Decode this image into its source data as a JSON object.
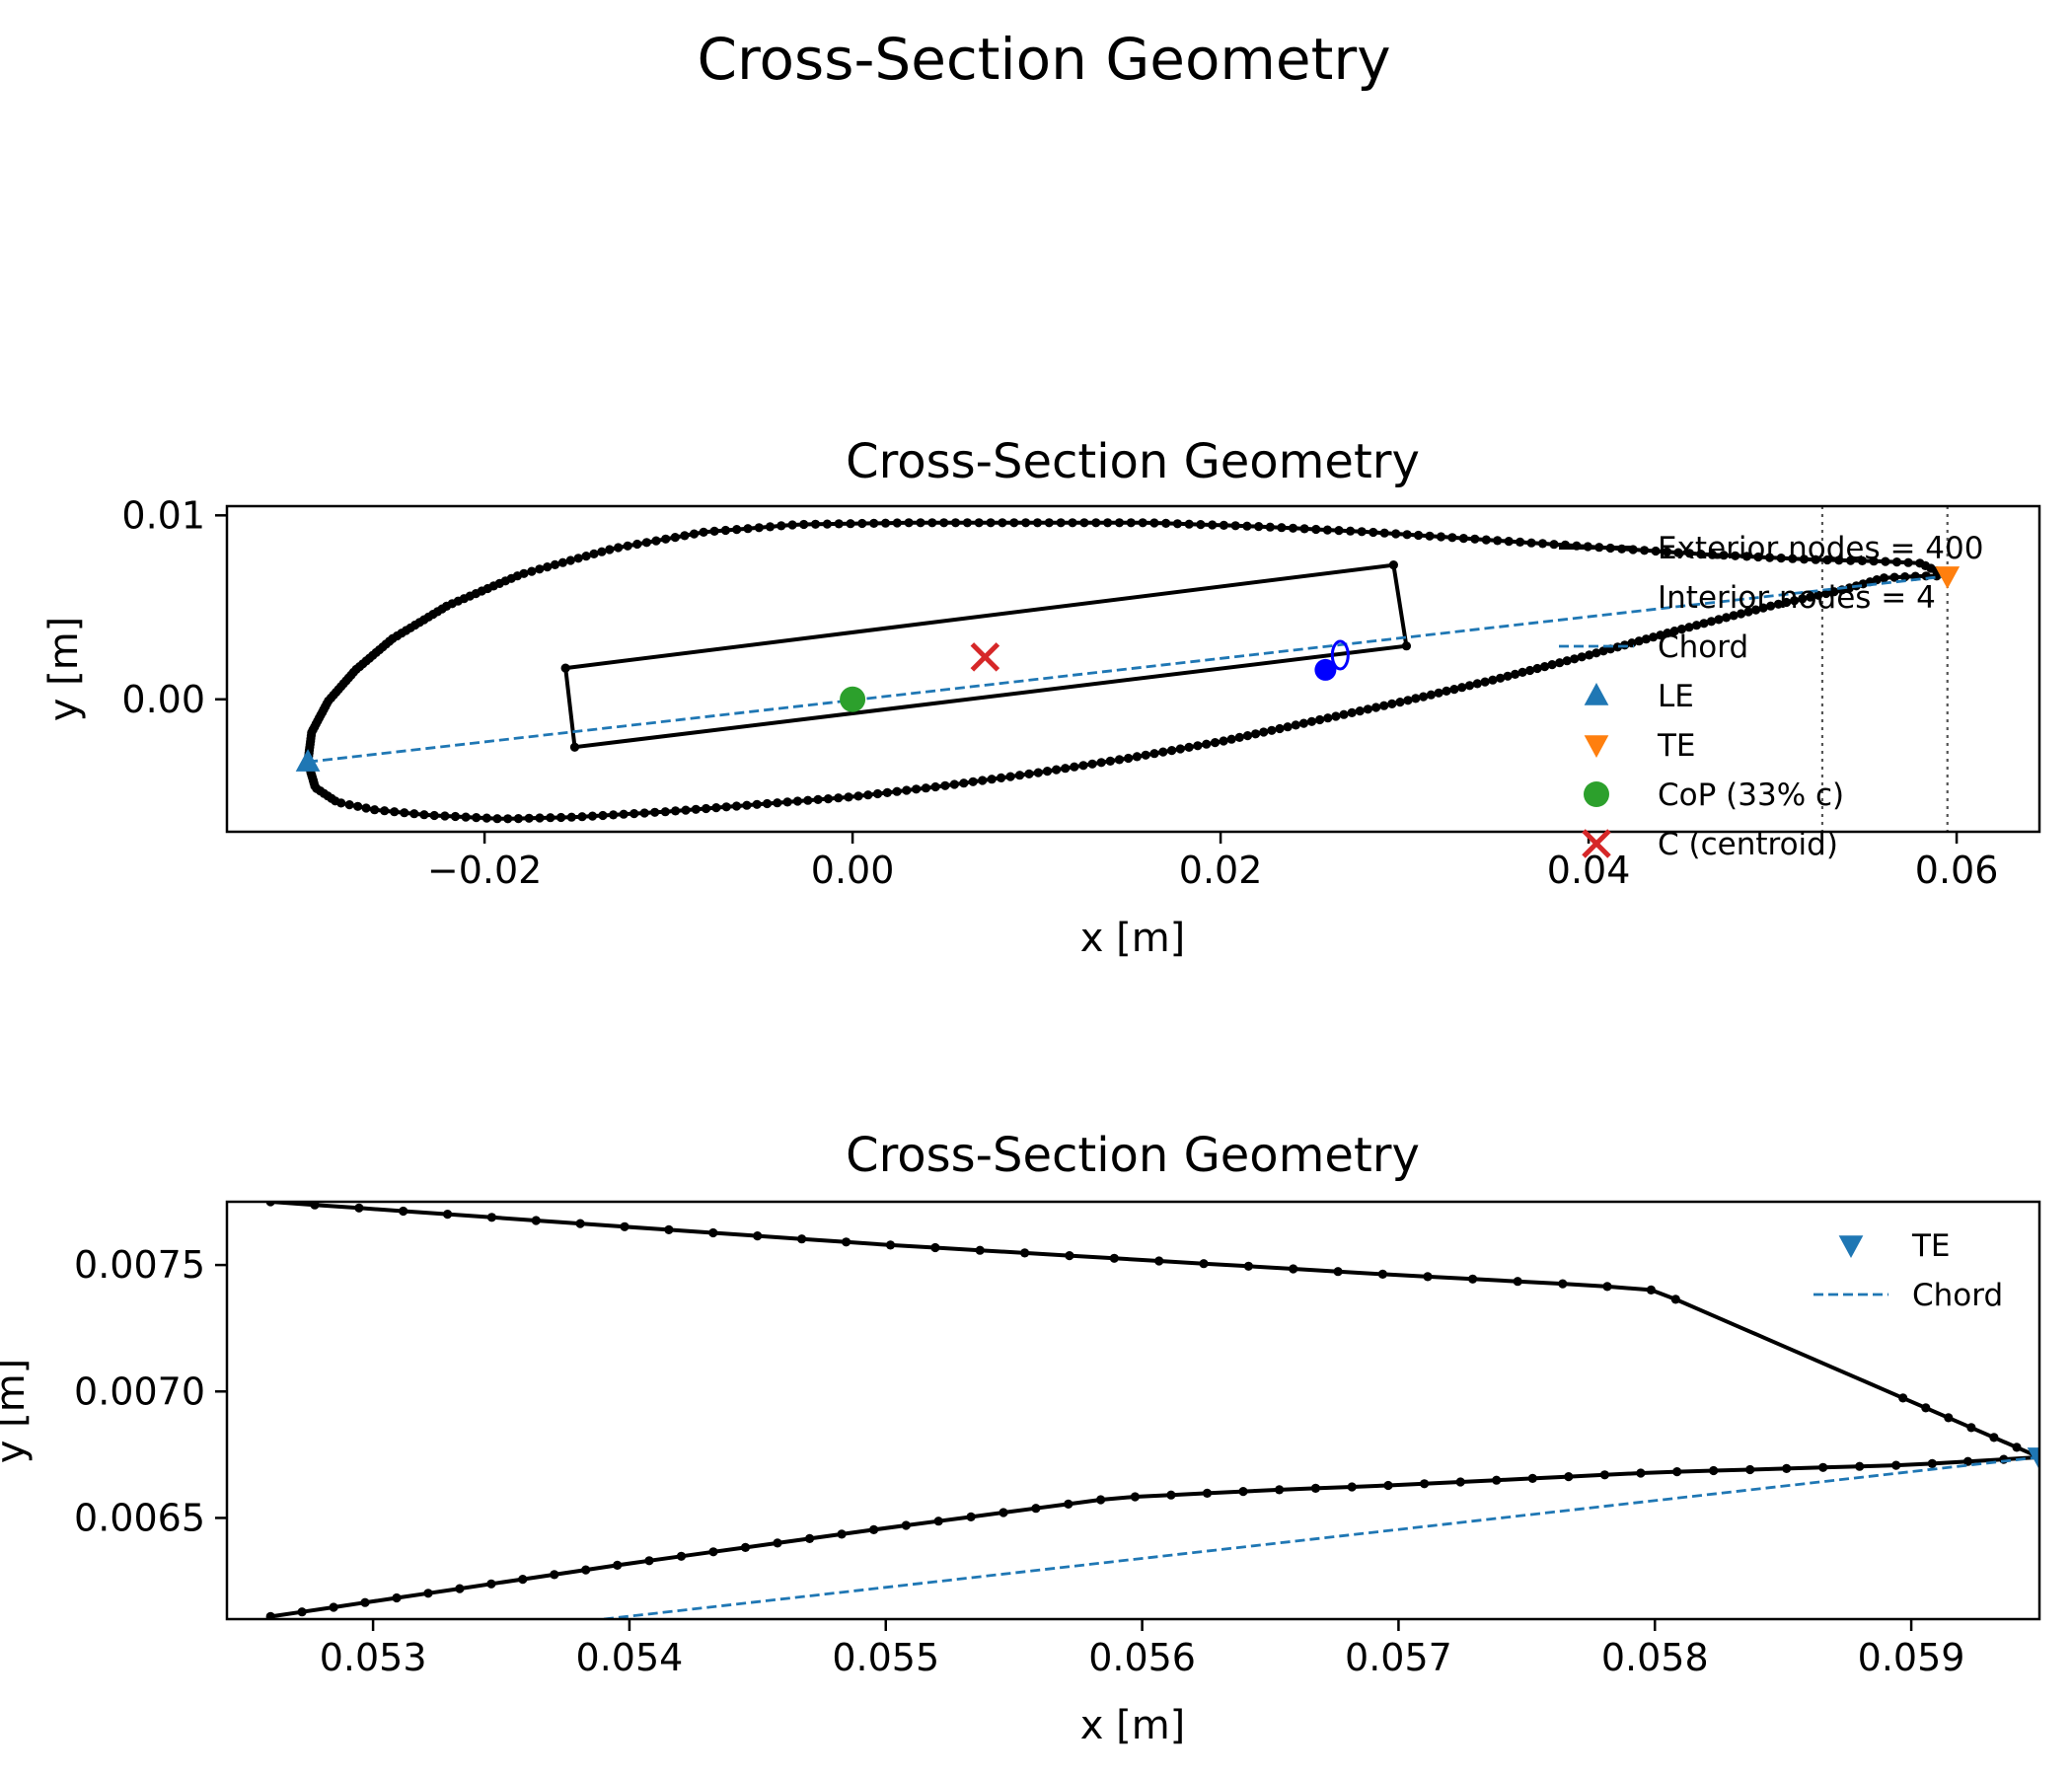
{
  "figure": {
    "suptitle": "Cross-Section Geometry"
  },
  "colors": {
    "exterior": "#000000",
    "chord": "#1f77b4",
    "le": "#1f77b4",
    "te": "#ff7f0e",
    "te_zoom": "#1f77b4",
    "cop": "#2ca02c",
    "centroid": "#d62728",
    "shear_center": "#0000ff",
    "guide": "#555555"
  },
  "chart_data": [
    {
      "type": "line",
      "title": "Cross-Section Geometry",
      "xlabel": "x [m]",
      "ylabel": "y [m]",
      "xlim": [
        -0.034,
        0.0645
      ],
      "ylim": [
        -0.0072,
        0.0105
      ],
      "xticks": [
        -0.02,
        0.0,
        0.02,
        0.04,
        0.06
      ],
      "xtick_labels": [
        "−0.02",
        "0.00",
        "0.02",
        "0.04",
        "0.06"
      ],
      "yticks": [
        0.0,
        0.01
      ],
      "ytick_labels": [
        "0.00",
        "0.01"
      ],
      "grid": false,
      "legend_position": "right",
      "legend": [
        {
          "label": "Exterior nodes = 400",
          "marker": "line"
        },
        {
          "label": "Interior nodes = 4",
          "marker": "none"
        },
        {
          "label": "Chord",
          "marker": "dash"
        },
        {
          "label": "LE",
          "marker": "triangle-up"
        },
        {
          "label": "TE",
          "marker": "triangle-down"
        },
        {
          "label": "CoP (33% c)",
          "marker": "circle"
        },
        {
          "label": "C (centroid)",
          "marker": "x"
        }
      ],
      "airfoil": {
        "le": [
          -0.0296,
          -0.0034
        ],
        "te": [
          0.0595,
          0.0067
        ],
        "upper": [
          [
            -0.0296,
            -0.0034
          ],
          [
            -0.0294,
            -0.0018
          ],
          [
            -0.0285,
            -0.0001
          ],
          [
            -0.027,
            0.0016
          ],
          [
            -0.025,
            0.0033
          ],
          [
            -0.022,
            0.0051
          ],
          [
            -0.018,
            0.0068
          ],
          [
            -0.013,
            0.0082
          ],
          [
            -0.008,
            0.0091
          ],
          [
            -0.003,
            0.0095
          ],
          [
            0.003,
            0.0096
          ],
          [
            0.01,
            0.0096
          ],
          [
            0.016,
            0.0096
          ],
          [
            0.022,
            0.0094
          ],
          [
            0.028,
            0.0091
          ],
          [
            0.034,
            0.0087
          ],
          [
            0.04,
            0.0083
          ],
          [
            0.046,
            0.0079
          ],
          [
            0.052,
            0.0076
          ],
          [
            0.056,
            0.0075
          ],
          [
            0.058,
            0.0074
          ],
          [
            0.0595,
            0.0067
          ]
        ],
        "lower": [
          [
            -0.0296,
            -0.0034
          ],
          [
            -0.0292,
            -0.0048
          ],
          [
            -0.028,
            -0.0056
          ],
          [
            -0.026,
            -0.006
          ],
          [
            -0.023,
            -0.0063
          ],
          [
            -0.019,
            -0.0065
          ],
          [
            -0.015,
            -0.0064
          ],
          [
            -0.01,
            -0.0061
          ],
          [
            -0.005,
            -0.0057
          ],
          [
            0.0,
            -0.0053
          ],
          [
            0.005,
            -0.0047
          ],
          [
            0.01,
            -0.004
          ],
          [
            0.015,
            -0.0032
          ],
          [
            0.02,
            -0.0023
          ],
          [
            0.025,
            -0.0012
          ],
          [
            0.03,
            -0.0001
          ],
          [
            0.035,
            0.0011
          ],
          [
            0.04,
            0.0024
          ],
          [
            0.045,
            0.0038
          ],
          [
            0.05,
            0.0051
          ],
          [
            0.054,
            0.006
          ],
          [
            0.056,
            0.0066
          ],
          [
            0.058,
            0.0067
          ],
          [
            0.0595,
            0.0067
          ]
        ]
      },
      "interior_box": [
        [
          -0.0156,
          0.0017
        ],
        [
          0.0294,
          0.0073
        ],
        [
          0.0301,
          0.0029
        ],
        [
          -0.0151,
          -0.0026
        ]
      ],
      "chord_line": [
        [
          -0.0296,
          -0.0034
        ],
        [
          0.0595,
          0.0067
        ]
      ],
      "guides_x": [
        0.0527,
        0.0595
      ],
      "cop": [
        0.0,
        0.0
      ],
      "centroid": [
        0.0072,
        0.0023
      ],
      "shear_center": [
        0.0257,
        0.0016
      ],
      "shear_center_ring": [
        0.0265,
        0.0024
      ]
    },
    {
      "type": "line",
      "title": "Cross-Section Geometry",
      "xlabel": "x [m]",
      "ylabel": "y [m]",
      "xlim": [
        0.05243,
        0.0595
      ],
      "ylim": [
        0.0061,
        0.00775
      ],
      "xticks": [
        0.053,
        0.054,
        0.055,
        0.056,
        0.057,
        0.058,
        0.059
      ],
      "xtick_labels": [
        "0.053",
        "0.054",
        "0.055",
        "0.056",
        "0.057",
        "0.058",
        "0.059"
      ],
      "yticks": [
        0.0065,
        0.007,
        0.0075
      ],
      "ytick_labels": [
        "0.0065",
        "0.0070",
        "0.0075"
      ],
      "grid": false,
      "legend_position": "top-right",
      "legend": [
        {
          "label": "TE",
          "marker": "triangle-down"
        },
        {
          "label": "Chord",
          "marker": "dash"
        }
      ],
      "upper": [
        [
          0.0526,
          0.00775
        ],
        [
          0.054,
          0.00765
        ],
        [
          0.055,
          0.00758
        ],
        [
          0.056,
          0.00752
        ],
        [
          0.057,
          0.00746
        ],
        [
          0.05775,
          0.00742
        ],
        [
          0.058,
          0.0074
        ],
        [
          0.0595,
          0.00674
        ]
      ],
      "lower": [
        [
          0.0526,
          0.00611
        ],
        [
          0.053,
          0.00617
        ],
        [
          0.054,
          0.00632
        ],
        [
          0.055,
          0.00646
        ],
        [
          0.0556,
          0.00654
        ],
        [
          0.0559,
          0.00658
        ],
        [
          0.0565,
          0.00661
        ],
        [
          0.057,
          0.00663
        ],
        [
          0.058,
          0.00668
        ],
        [
          0.059,
          0.00671
        ],
        [
          0.0595,
          0.00674
        ]
      ],
      "chord_line": [
        [
          0.0539,
          0.0061
        ],
        [
          0.0595,
          0.00674
        ]
      ],
      "te": [
        0.0595,
        0.00674
      ]
    }
  ]
}
